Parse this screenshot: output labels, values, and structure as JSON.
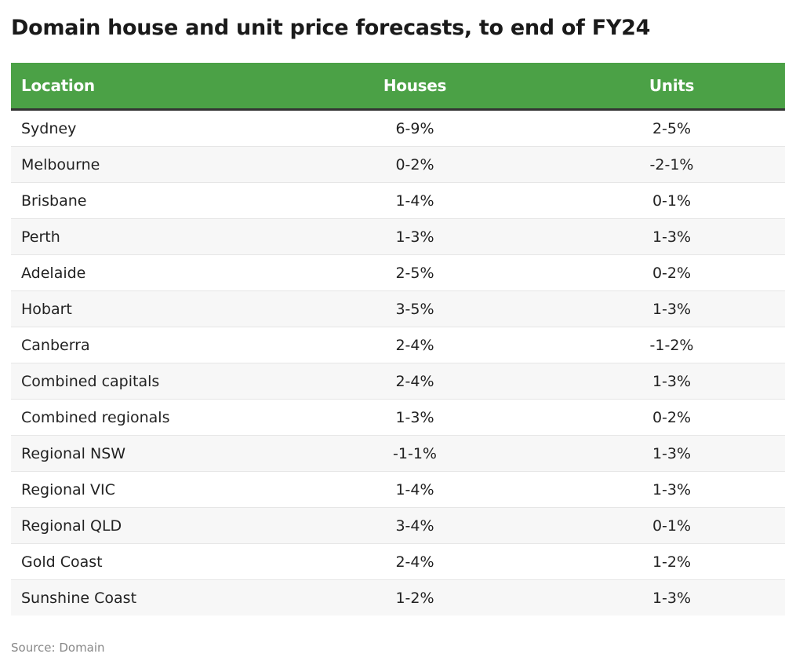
{
  "chart_data": {
    "type": "table",
    "title": "Domain house and unit price forecasts, to end of FY24",
    "header_color": "#4ba146",
    "columns": [
      "Location",
      "Houses",
      "Units"
    ],
    "rows": [
      [
        "Sydney",
        "6-9%",
        "2-5%"
      ],
      [
        "Melbourne",
        "0-2%",
        "-2-1%"
      ],
      [
        "Brisbane",
        "1-4%",
        "0-1%"
      ],
      [
        "Perth",
        "1-3%",
        "1-3%"
      ],
      [
        "Adelaide",
        "2-5%",
        "0-2%"
      ],
      [
        "Hobart",
        "3-5%",
        "1-3%"
      ],
      [
        "Canberra",
        "2-4%",
        "-1-2%"
      ],
      [
        "Combined capitals",
        "2-4%",
        "1-3%"
      ],
      [
        "Combined regionals",
        "1-3%",
        "0-2%"
      ],
      [
        "Regional NSW",
        "-1-1%",
        "1-3%"
      ],
      [
        "Regional VIC",
        "1-4%",
        "1-3%"
      ],
      [
        "Regional QLD",
        "3-4%",
        "0-1%"
      ],
      [
        "Gold Coast",
        "2-4%",
        "1-2%"
      ],
      [
        "Sunshine Coast",
        "1-2%",
        "1-3%"
      ]
    ],
    "source": "Source: Domain"
  }
}
